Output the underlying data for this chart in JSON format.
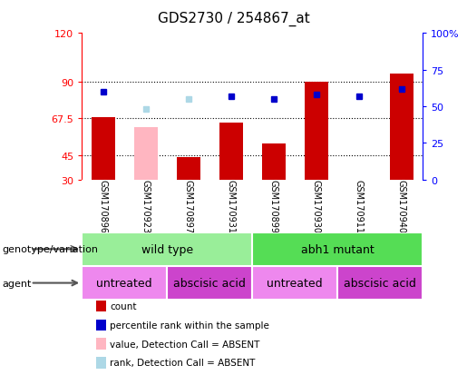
{
  "title": "GDS2730 / 254867_at",
  "samples": [
    "GSM170896",
    "GSM170923",
    "GSM170897",
    "GSM170931",
    "GSM170899",
    "GSM170930",
    "GSM170911",
    "GSM170940"
  ],
  "count_values": [
    68.5,
    0,
    44.0,
    65.0,
    52.0,
    90.0,
    0,
    95.0
  ],
  "count_absent": [
    0,
    62.0,
    0,
    0,
    0,
    0,
    0,
    0
  ],
  "percentile_values": [
    60,
    0,
    0,
    57,
    55,
    58,
    57,
    62
  ],
  "percentile_absent": [
    0,
    48,
    55,
    0,
    0,
    0,
    0,
    0
  ],
  "left_yticks": [
    30,
    45,
    67.5,
    90,
    120
  ],
  "right_yticks": [
    0,
    25,
    50,
    75,
    100
  ],
  "right_yticklabels": [
    "0",
    "25",
    "50",
    "75",
    "100%"
  ],
  "ylim_left": [
    30,
    120
  ],
  "ylim_right": [
    0,
    100
  ],
  "bar_color_red": "#cc0000",
  "bar_color_pink": "#ffb6c1",
  "dot_color_blue": "#0000cc",
  "dot_color_lightblue": "#add8e6",
  "bg_color": "#ffffff",
  "label_area_bg": "#cccccc",
  "genotype_groups": [
    {
      "label": "wild type",
      "start": 0,
      "end": 4,
      "color": "#99ee99"
    },
    {
      "label": "abh1 mutant",
      "start": 4,
      "end": 8,
      "color": "#55dd55"
    }
  ],
  "agent_groups": [
    {
      "label": "untreated",
      "start": 0,
      "end": 2,
      "color": "#ee88ee"
    },
    {
      "label": "abscisic acid",
      "start": 2,
      "end": 4,
      "color": "#cc44cc"
    },
    {
      "label": "untreated",
      "start": 4,
      "end": 6,
      "color": "#ee88ee"
    },
    {
      "label": "abscisic acid",
      "start": 6,
      "end": 8,
      "color": "#cc44cc"
    }
  ],
  "genotype_label": "genotype/variation",
  "agent_label": "agent",
  "legend_items": [
    {
      "label": "count",
      "color": "#cc0000"
    },
    {
      "label": "percentile rank within the sample",
      "color": "#0000cc"
    },
    {
      "label": "value, Detection Call = ABSENT",
      "color": "#ffb6c1"
    },
    {
      "label": "rank, Detection Call = ABSENT",
      "color": "#add8e6"
    }
  ]
}
